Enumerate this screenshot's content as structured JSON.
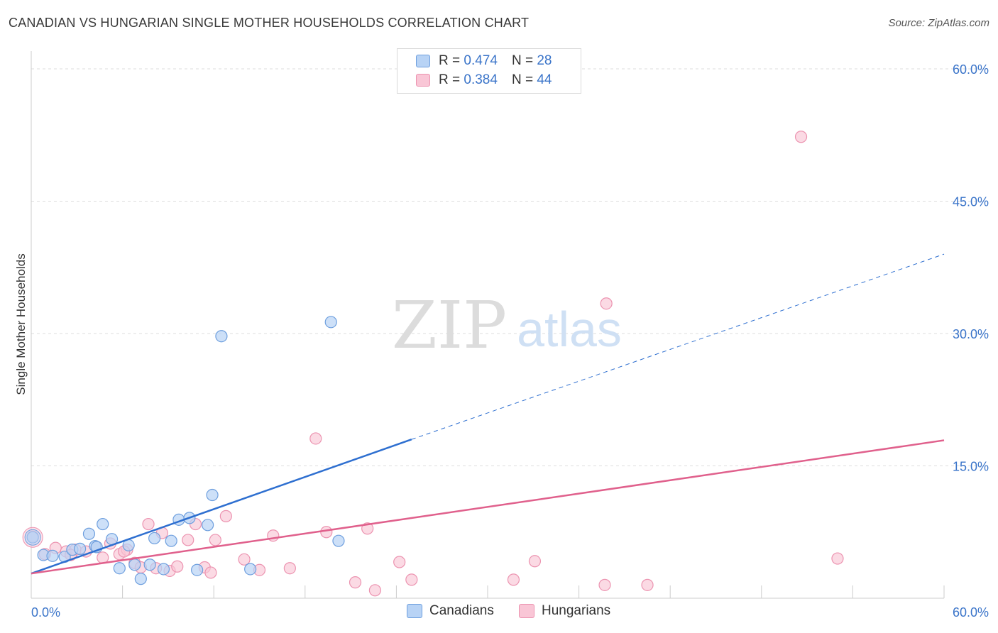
{
  "title": "CANADIAN VS HUNGARIAN SINGLE MOTHER HOUSEHOLDS CORRELATION CHART",
  "source": "Source: ZipAtlas.com",
  "watermark": {
    "zip": "ZIP",
    "atlas": "atlas"
  },
  "legend": {
    "r_label": "R =",
    "n_label": "N =",
    "rows": [
      {
        "name": "Canadians",
        "r": "0.474",
        "n": "28"
      },
      {
        "name": "Hungarians",
        "r": "0.384",
        "n": "44"
      }
    ]
  },
  "colors": {
    "canadians_fill": "#b8d3f5",
    "canadians_stroke": "#6e9fde",
    "canadians_line": "#2e6fd0",
    "hungarians_fill": "#f9c6d6",
    "hungarians_stroke": "#ec93b0",
    "hungarians_line": "#e0608c",
    "axis_text": "#3a74c9",
    "grid": "#dddddd"
  },
  "chart_data": {
    "type": "scatter",
    "title": "CANADIAN VS HUNGARIAN SINGLE MOTHER HOUSEHOLDS CORRELATION CHART",
    "xlabel": "",
    "ylabel": "Single Mother Households",
    "xlim": [
      0,
      60
    ],
    "ylim": [
      0,
      63
    ],
    "x_tick_labels": [
      "0.0%",
      "60.0%"
    ],
    "y_ticks": [
      15,
      30,
      45,
      60
    ],
    "y_tick_labels": [
      "15.0%",
      "30.0%",
      "45.0%",
      "60.0%"
    ],
    "series": [
      {
        "name": "Canadians",
        "points": [
          [
            0.1,
            6.9
          ],
          [
            0.8,
            4.9
          ],
          [
            1.4,
            4.8
          ],
          [
            2.2,
            4.7
          ],
          [
            2.7,
            5.5
          ],
          [
            3.2,
            5.6
          ],
          [
            3.8,
            7.3
          ],
          [
            4.2,
            5.9
          ],
          [
            4.7,
            8.4
          ],
          [
            5.3,
            6.7
          ],
          [
            5.8,
            3.4
          ],
          [
            6.4,
            6.0
          ],
          [
            6.8,
            3.8
          ],
          [
            7.2,
            2.2
          ],
          [
            7.8,
            3.8
          ],
          [
            8.1,
            6.8
          ],
          [
            8.7,
            3.3
          ],
          [
            9.2,
            6.5
          ],
          [
            9.7,
            8.9
          ],
          [
            10.4,
            9.1
          ],
          [
            10.9,
            3.2
          ],
          [
            11.6,
            8.3
          ],
          [
            11.9,
            11.7
          ],
          [
            12.5,
            29.7
          ],
          [
            14.4,
            3.3
          ],
          [
            19.7,
            31.3
          ],
          [
            20.2,
            6.5
          ],
          [
            4.3,
            5.8
          ]
        ],
        "trend": {
          "x": [
            0,
            25
          ],
          "y": [
            2.8,
            18.0
          ],
          "dashed_to": {
            "x": 60,
            "y": 39.0
          }
        }
      },
      {
        "name": "Hungarians",
        "points": [
          [
            0.1,
            7.0
          ],
          [
            0.9,
            5.0
          ],
          [
            1.6,
            5.7
          ],
          [
            2.3,
            5.3
          ],
          [
            2.9,
            5.5
          ],
          [
            3.6,
            5.3
          ],
          [
            4.3,
            5.8
          ],
          [
            4.7,
            4.6
          ],
          [
            5.2,
            6.2
          ],
          [
            5.8,
            5.0
          ],
          [
            6.3,
            5.5
          ],
          [
            6.8,
            4.0
          ],
          [
            7.2,
            3.5
          ],
          [
            7.7,
            8.4
          ],
          [
            8.2,
            3.4
          ],
          [
            8.6,
            7.4
          ],
          [
            9.1,
            3.1
          ],
          [
            9.6,
            3.6
          ],
          [
            10.3,
            6.6
          ],
          [
            10.8,
            8.4
          ],
          [
            11.4,
            3.5
          ],
          [
            11.8,
            2.9
          ],
          [
            12.1,
            6.6
          ],
          [
            12.8,
            9.3
          ],
          [
            14.0,
            4.4
          ],
          [
            15.0,
            3.2
          ],
          [
            15.9,
            7.1
          ],
          [
            17.0,
            3.4
          ],
          [
            18.7,
            18.1
          ],
          [
            19.4,
            7.5
          ],
          [
            21.3,
            1.8
          ],
          [
            22.1,
            7.9
          ],
          [
            22.6,
            0.9
          ],
          [
            24.2,
            4.1
          ],
          [
            25.0,
            2.1
          ],
          [
            31.7,
            2.1
          ],
          [
            33.1,
            4.2
          ],
          [
            37.7,
            1.5
          ],
          [
            37.8,
            33.4
          ],
          [
            40.5,
            1.5
          ],
          [
            50.6,
            52.3
          ],
          [
            53.0,
            4.5
          ],
          [
            2.6,
            4.9
          ],
          [
            6.1,
            5.3
          ]
        ],
        "trend": {
          "x": [
            0,
            60
          ],
          "y": [
            2.8,
            17.9
          ]
        }
      }
    ]
  }
}
